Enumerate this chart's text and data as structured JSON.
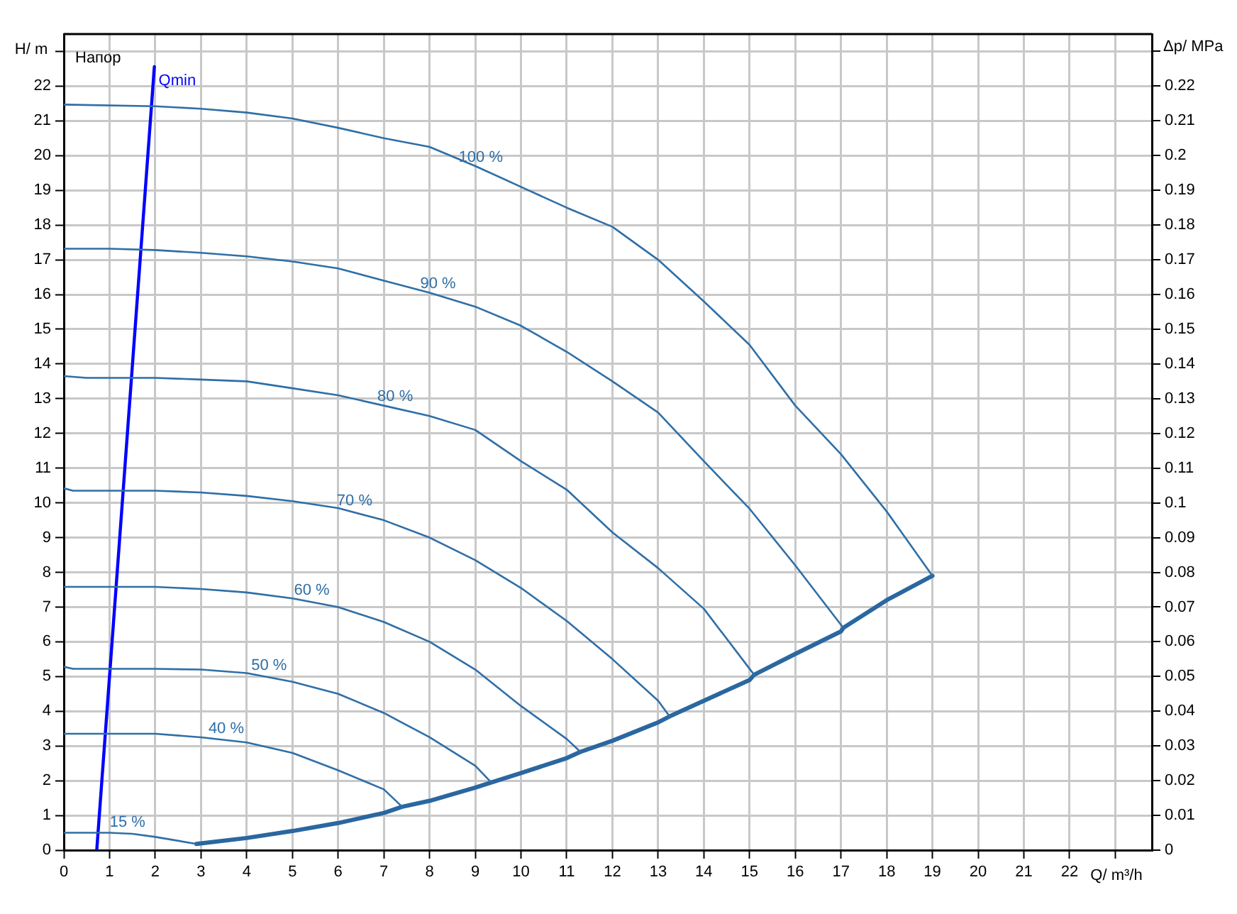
{
  "chart_data": {
    "type": "line",
    "title": "Напор",
    "xlabel": "Q/ m³/h",
    "ylabel": "H/ m",
    "y2label": "Δp/ MPa",
    "xlim": [
      0,
      23.8
    ],
    "xticks": [
      0,
      1,
      2,
      3,
      4,
      5,
      6,
      7,
      8,
      9,
      10,
      11,
      12,
      13,
      14,
      15,
      16,
      17,
      18,
      19,
      20,
      21,
      22,
      {
        "value": 23,
        "label": null
      }
    ],
    "ylim": [
      0,
      23.5
    ],
    "yticks": [
      0,
      1,
      2,
      3,
      4,
      5,
      6,
      7,
      8,
      9,
      10,
      11,
      12,
      13,
      14,
      15,
      16,
      17,
      18,
      19,
      20,
      21,
      22,
      {
        "value": 23,
        "label": null
      }
    ],
    "y2lim": [
      0,
      0.235
    ],
    "y2ticks": [
      0,
      0.01,
      0.02,
      0.03,
      0.04,
      0.05,
      0.06,
      0.07,
      0.08,
      0.09,
      0.1,
      0.11,
      0.12,
      0.13,
      0.14,
      0.15,
      0.16,
      0.17,
      0.18,
      0.19,
      0.2,
      0.21,
      0.22,
      {
        "value": 0.23,
        "label": null
      }
    ],
    "grid": true,
    "legend": false,
    "marker": "none",
    "line_style": "solid",
    "series": [
      {
        "name": "100 %",
        "color": "#2f6fa7",
        "x": [
          0,
          2,
          3,
          4,
          5,
          6,
          7,
          8,
          9,
          10,
          11,
          12,
          13,
          14,
          15,
          16,
          17,
          18,
          19
        ],
        "values": [
          21.47,
          21.42,
          21.35,
          21.24,
          21.07,
          20.8,
          20.5,
          20.25,
          19.7,
          19.1,
          18.5,
          17.95,
          17.0,
          15.8,
          14.55,
          12.8,
          11.4,
          9.75,
          7.9
        ]
      },
      {
        "name": "90 %",
        "color": "#2f6fa7",
        "x": [
          0,
          1,
          2,
          3,
          4,
          5,
          6,
          7,
          8,
          9,
          10,
          11,
          12,
          13,
          14,
          15,
          16,
          17.05
        ],
        "values": [
          17.32,
          17.32,
          17.28,
          17.2,
          17.1,
          16.95,
          16.75,
          16.4,
          16.05,
          15.65,
          15.1,
          14.35,
          13.5,
          12.6,
          11.2,
          9.83,
          8.2,
          6.4
        ]
      },
      {
        "name": "80 %",
        "color": "#2f6fa7",
        "x": [
          0,
          0.5,
          2,
          3,
          4,
          5,
          6,
          7,
          8,
          9,
          10,
          11,
          12,
          13,
          14,
          15.1
        ],
        "values": [
          13.65,
          13.6,
          13.6,
          13.55,
          13.5,
          13.3,
          13.1,
          12.8,
          12.5,
          12.1,
          11.2,
          10.38,
          9.15,
          8.12,
          6.95,
          5.05
        ]
      },
      {
        "name": "70 %",
        "color": "#2f6fa7",
        "x": [
          0,
          0.2,
          2,
          3,
          4,
          5,
          6,
          7,
          8,
          9,
          10,
          11,
          12,
          13,
          13.25
        ],
        "values": [
          10.42,
          10.35,
          10.35,
          10.3,
          10.2,
          10.05,
          9.85,
          9.5,
          9.0,
          8.35,
          7.55,
          6.6,
          5.5,
          4.3,
          3.85
        ]
      },
      {
        "name": "60 %",
        "color": "#2f6fa7",
        "x": [
          0,
          2,
          3,
          4,
          5,
          6,
          7,
          8,
          9,
          10,
          11,
          11.3
        ],
        "values": [
          7.58,
          7.58,
          7.52,
          7.42,
          7.25,
          7.0,
          6.57,
          6.0,
          5.2,
          4.15,
          3.2,
          2.83
        ]
      },
      {
        "name": "50 %",
        "color": "#2f6fa7",
        "x": [
          0,
          0.2,
          2,
          3,
          4,
          5,
          6,
          7,
          8,
          9,
          9.35
        ],
        "values": [
          5.28,
          5.22,
          5.22,
          5.2,
          5.1,
          4.85,
          4.5,
          3.95,
          3.25,
          2.43,
          1.95
        ]
      },
      {
        "name": "40 %",
        "color": "#2f6fa7",
        "x": [
          0,
          2,
          3,
          4,
          5,
          6,
          7,
          7.4
        ],
        "values": [
          3.35,
          3.35,
          3.25,
          3.1,
          2.8,
          2.3,
          1.75,
          1.25
        ]
      },
      {
        "name": "15 %",
        "color": "#2f6fa7",
        "x": [
          0,
          1,
          1.5,
          2,
          2.9
        ],
        "values": [
          0.5,
          0.5,
          0.47,
          0.38,
          0.18
        ]
      },
      {
        "color": "#2a67a0",
        "x": [
          2.9,
          4,
          5,
          6,
          7,
          7.4,
          8,
          9,
          9.35,
          10,
          11,
          11.3,
          12,
          13,
          13.25,
          14,
          15,
          15.1,
          16,
          17,
          17.05,
          18,
          19
        ],
        "values": [
          0.18,
          0.35,
          0.55,
          0.78,
          1.07,
          1.25,
          1.42,
          1.8,
          1.95,
          2.22,
          2.65,
          2.83,
          3.15,
          3.68,
          3.85,
          4.3,
          4.9,
          5.05,
          5.65,
          6.3,
          6.4,
          7.2,
          7.9
        ]
      },
      {
        "name": "Qmin",
        "color": "#0000ff",
        "x": [
          0.72,
          1.98
        ],
        "values": [
          0,
          22.56
        ]
      }
    ]
  }
}
